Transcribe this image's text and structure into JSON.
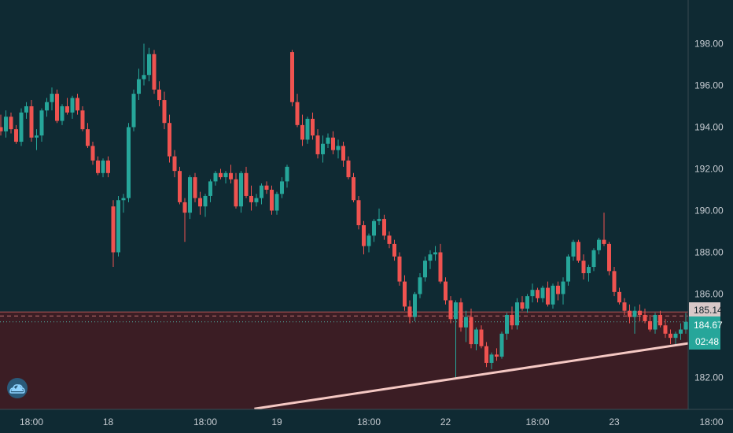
{
  "chart_data": {
    "type": "candlestick",
    "y_axis": {
      "range": [
        180.5,
        200.3
      ],
      "ticks": [
        {
          "value": 198,
          "label": "198.00"
        },
        {
          "value": 196,
          "label": "196.00"
        },
        {
          "value": 194,
          "label": "194.00"
        },
        {
          "value": 192,
          "label": "192.00"
        },
        {
          "value": 190,
          "label": "190.00"
        },
        {
          "value": 188,
          "label": "188.00"
        },
        {
          "value": 186,
          "label": "186.00"
        },
        {
          "value": 182,
          "label": "182.00"
        }
      ]
    },
    "x_axis": {
      "ticks": [
        {
          "index": 6,
          "label": "18:00"
        },
        {
          "index": 21,
          "label": "18"
        },
        {
          "index": 40,
          "label": "18:00"
        },
        {
          "index": 54,
          "label": "19"
        },
        {
          "index": 72,
          "label": "18:00"
        },
        {
          "index": 87,
          "label": "22"
        },
        {
          "index": 105,
          "label": "18:00"
        },
        {
          "index": 120,
          "label": "23"
        },
        {
          "index": 139,
          "label": "18:00"
        }
      ]
    },
    "grid": false,
    "candles": [
      [
        194.0,
        194.6,
        193.6,
        193.8
      ],
      [
        193.8,
        194.8,
        193.5,
        194.5
      ],
      [
        194.5,
        194.7,
        193.7,
        193.9
      ],
      [
        193.9,
        194.1,
        193.2,
        193.3
      ],
      [
        193.3,
        194.9,
        193.1,
        194.7
      ],
      [
        194.7,
        195.2,
        194.4,
        195.0
      ],
      [
        195.0,
        195.3,
        193.3,
        193.5
      ],
      [
        193.5,
        193.9,
        192.9,
        193.6
      ],
      [
        193.6,
        194.9,
        193.3,
        194.8
      ],
      [
        194.8,
        195.4,
        194.5,
        195.2
      ],
      [
        195.2,
        195.9,
        194.8,
        195.6
      ],
      [
        195.6,
        195.8,
        194.2,
        194.3
      ],
      [
        194.3,
        195.1,
        194.1,
        195.0
      ],
      [
        195.0,
        195.4,
        194.6,
        194.7
      ],
      [
        194.7,
        195.5,
        194.4,
        195.4
      ],
      [
        195.4,
        195.6,
        194.6,
        194.8
      ],
      [
        194.8,
        195.0,
        193.8,
        193.9
      ],
      [
        193.9,
        194.2,
        193.0,
        193.1
      ],
      [
        193.1,
        193.3,
        192.2,
        192.4
      ],
      [
        192.4,
        192.6,
        191.7,
        191.8
      ],
      [
        191.8,
        192.5,
        191.6,
        192.4
      ],
      [
        192.4,
        192.6,
        191.6,
        191.8
      ],
      [
        190.2,
        190.5,
        187.3,
        188.0
      ],
      [
        188.0,
        190.7,
        187.8,
        190.5
      ],
      [
        190.5,
        190.8,
        189.9,
        190.6
      ],
      [
        190.6,
        194.2,
        190.4,
        194.0
      ],
      [
        194.0,
        195.8,
        193.8,
        195.6
      ],
      [
        195.6,
        196.8,
        195.3,
        196.3
      ],
      [
        196.3,
        198.0,
        196.0,
        196.5
      ],
      [
        196.5,
        197.8,
        196.2,
        197.5
      ],
      [
        197.5,
        197.7,
        195.6,
        195.8
      ],
      [
        195.8,
        196.2,
        195.0,
        195.3
      ],
      [
        195.3,
        195.7,
        193.9,
        194.2
      ],
      [
        194.2,
        194.6,
        192.3,
        192.6
      ],
      [
        192.6,
        192.9,
        191.6,
        191.9
      ],
      [
        191.9,
        192.1,
        190.3,
        190.4
      ],
      [
        190.4,
        190.6,
        188.5,
        189.9
      ],
      [
        189.9,
        191.7,
        189.6,
        191.6
      ],
      [
        191.6,
        191.8,
        190.4,
        190.6
      ],
      [
        190.6,
        190.9,
        189.8,
        190.2
      ],
      [
        190.2,
        190.8,
        189.7,
        190.7
      ],
      [
        190.7,
        191.5,
        190.4,
        191.4
      ],
      [
        191.4,
        191.9,
        191.2,
        191.8
      ],
      [
        191.8,
        192.0,
        191.5,
        191.6
      ],
      [
        191.6,
        191.9,
        191.3,
        191.8
      ],
      [
        191.8,
        192.2,
        191.3,
        191.5
      ],
      [
        191.5,
        191.8,
        190.1,
        190.2
      ],
      [
        190.2,
        191.9,
        189.9,
        191.8
      ],
      [
        191.8,
        192.1,
        190.6,
        190.7
      ],
      [
        190.7,
        191.2,
        190.0,
        190.4
      ],
      [
        190.4,
        190.8,
        190.2,
        190.6
      ],
      [
        190.6,
        191.3,
        190.3,
        191.2
      ],
      [
        191.2,
        191.4,
        190.8,
        191.0
      ],
      [
        191.0,
        191.2,
        189.8,
        190.0
      ],
      [
        190.0,
        190.9,
        189.8,
        190.8
      ],
      [
        190.8,
        191.6,
        190.6,
        191.4
      ],
      [
        191.4,
        192.2,
        191.1,
        192.1
      ],
      [
        197.6,
        197.7,
        195.0,
        195.2
      ],
      [
        195.2,
        195.6,
        194.0,
        194.1
      ],
      [
        194.1,
        194.6,
        193.1,
        193.4
      ],
      [
        193.4,
        194.5,
        193.2,
        194.4
      ],
      [
        194.4,
        194.7,
        193.4,
        193.6
      ],
      [
        193.6,
        193.9,
        192.5,
        192.7
      ],
      [
        192.7,
        193.6,
        192.3,
        193.2
      ],
      [
        193.2,
        193.7,
        193.0,
        193.5
      ],
      [
        193.5,
        193.8,
        192.7,
        192.9
      ],
      [
        192.9,
        193.4,
        192.5,
        193.1
      ],
      [
        193.1,
        193.3,
        192.1,
        192.4
      ],
      [
        192.4,
        192.6,
        191.5,
        191.6
      ],
      [
        191.6,
        191.8,
        190.4,
        190.5
      ],
      [
        190.5,
        190.7,
        189.1,
        189.3
      ],
      [
        189.3,
        189.5,
        187.9,
        188.3
      ],
      [
        188.3,
        188.9,
        188.0,
        188.8
      ],
      [
        188.8,
        189.6,
        188.5,
        189.5
      ],
      [
        189.5,
        190.1,
        189.3,
        189.6
      ],
      [
        189.6,
        189.8,
        188.6,
        188.8
      ],
      [
        188.8,
        189.0,
        188.2,
        188.4
      ],
      [
        188.4,
        188.6,
        187.6,
        187.8
      ],
      [
        187.8,
        188.0,
        186.4,
        186.6
      ],
      [
        186.6,
        186.9,
        185.2,
        185.4
      ],
      [
        185.4,
        185.7,
        184.6,
        184.9
      ],
      [
        184.9,
        186.1,
        184.7,
        186.0
      ],
      [
        186.0,
        187.0,
        185.8,
        186.8
      ],
      [
        186.8,
        187.8,
        186.6,
        187.6
      ],
      [
        187.6,
        188.1,
        187.2,
        187.9
      ],
      [
        187.9,
        188.3,
        187.6,
        188.0
      ],
      [
        188.0,
        188.4,
        186.5,
        186.6
      ],
      [
        186.6,
        186.8,
        185.5,
        185.7
      ],
      [
        185.7,
        185.9,
        184.6,
        184.8
      ],
      [
        184.8,
        185.7,
        182.0,
        185.6
      ],
      [
        185.6,
        185.8,
        184.2,
        184.4
      ],
      [
        184.4,
        185.2,
        183.7,
        184.9
      ],
      [
        184.9,
        185.3,
        183.4,
        183.6
      ],
      [
        183.6,
        184.4,
        183.3,
        184.3
      ],
      [
        184.3,
        184.5,
        183.4,
        183.5
      ],
      [
        183.5,
        183.7,
        182.5,
        182.7
      ],
      [
        182.7,
        183.2,
        182.4,
        183.1
      ],
      [
        183.1,
        183.4,
        182.8,
        183.0
      ],
      [
        183.0,
        184.2,
        182.9,
        184.1
      ],
      [
        184.1,
        185.1,
        183.8,
        185.0
      ],
      [
        185.0,
        185.4,
        184.3,
        184.5
      ],
      [
        184.5,
        185.8,
        184.3,
        185.6
      ],
      [
        185.6,
        185.9,
        185.2,
        185.3
      ],
      [
        185.3,
        186.0,
        185.1,
        185.9
      ],
      [
        185.9,
        186.5,
        185.6,
        186.2
      ],
      [
        186.2,
        186.3,
        185.6,
        185.8
      ],
      [
        185.8,
        186.4,
        185.6,
        186.3
      ],
      [
        186.3,
        186.6,
        185.4,
        185.5
      ],
      [
        185.5,
        186.5,
        185.3,
        186.4
      ],
      [
        186.4,
        186.6,
        185.7,
        186.0
      ],
      [
        186.0,
        186.8,
        185.5,
        186.6
      ],
      [
        186.6,
        187.9,
        186.4,
        187.8
      ],
      [
        187.8,
        188.6,
        187.6,
        188.5
      ],
      [
        188.5,
        188.6,
        187.5,
        187.6
      ],
      [
        187.6,
        187.9,
        186.7,
        187.0
      ],
      [
        187.0,
        187.4,
        186.6,
        187.3
      ],
      [
        187.3,
        188.2,
        187.1,
        188.1
      ],
      [
        188.1,
        188.7,
        187.9,
        188.6
      ],
      [
        188.6,
        189.9,
        188.3,
        188.4
      ],
      [
        188.4,
        188.5,
        186.9,
        187.1
      ],
      [
        187.1,
        187.3,
        185.9,
        186.1
      ],
      [
        186.1,
        186.3,
        185.5,
        185.6
      ],
      [
        185.6,
        185.8,
        185.0,
        185.2
      ],
      [
        185.2,
        185.5,
        184.6,
        184.9
      ],
      [
        184.9,
        185.4,
        184.1,
        185.2
      ],
      [
        185.2,
        185.5,
        184.7,
        185.0
      ],
      [
        185.0,
        185.3,
        184.6,
        184.7
      ],
      [
        184.7,
        185.0,
        184.2,
        184.3
      ],
      [
        184.3,
        185.1,
        184.1,
        185.0
      ],
      [
        185.0,
        185.2,
        184.4,
        184.5
      ],
      [
        184.5,
        184.8,
        183.9,
        184.1
      ],
      [
        184.1,
        184.3,
        183.6,
        183.9
      ],
      [
        183.9,
        184.2,
        183.5,
        184.1
      ],
      [
        184.1,
        184.6,
        183.8,
        184.3
      ],
      [
        184.3,
        185.1,
        184.1,
        184.67
      ]
    ],
    "colors": {
      "background": "#0f2a33",
      "up": "#26a69a",
      "down": "#ef5350",
      "zone_fill": "#3b1d24",
      "zone_border": "#b85a5a",
      "trendline": "#f5c8c3",
      "price_label": "#26a69a",
      "axis_text": "#c8cdd3"
    },
    "zone": {
      "top": 185.14
    },
    "trendline": {
      "start": {
        "index": 49.6,
        "value": 180.5
      },
      "end": {
        "index": 170,
        "value": 184.95
      }
    },
    "lines": {
      "dashed": 184.95,
      "dotted": 184.67
    },
    "price_labels": {
      "zone_top": "185.14",
      "last_price": "184.67",
      "countdown": "02:48"
    }
  },
  "logo": {
    "name": "cloud-logo-icon"
  }
}
